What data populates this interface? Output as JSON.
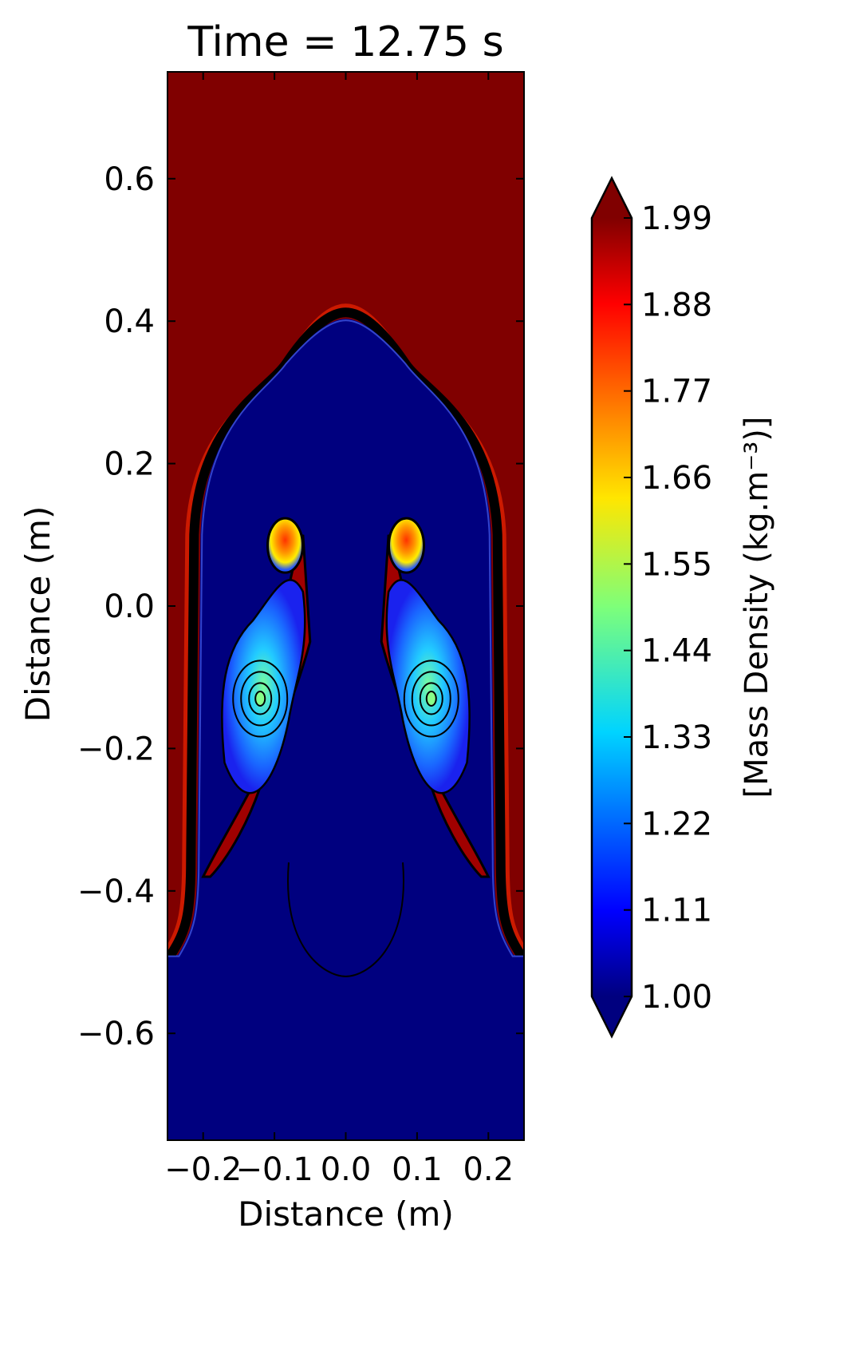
{
  "chart_data": {
    "type": "heatmap",
    "title": "Time = 12.75 s",
    "xlabel": "Distance (m)",
    "ylabel": "Distance (m)",
    "xlim": [
      -0.25,
      0.25
    ],
    "ylim": [
      -0.75,
      0.75
    ],
    "xticks": [
      -0.2,
      -0.1,
      0.0,
      0.1,
      0.2
    ],
    "xtick_labels": [
      "−0.2",
      "−0.1",
      "0.0",
      "0.1",
      "0.2"
    ],
    "yticks": [
      0.6,
      0.4,
      0.2,
      0.0,
      -0.2,
      -0.4,
      -0.6
    ],
    "ytick_labels": [
      "0.6",
      "0.4",
      "0.2",
      "0.0",
      "−0.2",
      "−0.4",
      "−0.6"
    ],
    "colorbar": {
      "label": "[Mass Density (kg.m⁻³)]",
      "min": 1.0,
      "max": 1.99,
      "extend": "both",
      "ticks": [
        1.99,
        1.88,
        1.77,
        1.66,
        1.55,
        1.44,
        1.33,
        1.22,
        1.11,
        1.0
      ],
      "tick_labels": [
        "1.99",
        "1.88",
        "1.77",
        "1.66",
        "1.55",
        "1.44",
        "1.33",
        "1.22",
        "1.11",
        "1.00"
      ],
      "colormap": "jet"
    },
    "fields": {
      "upper_fluid_density": 1.99,
      "lower_fluid_density": 1.0,
      "interface_far_field_y": -0.49,
      "bubble_tip_y": 0.41,
      "bubble_half_width": 0.215,
      "spike_bottom_y": -0.4,
      "vortex_cores": [
        {
          "x": -0.12,
          "y": -0.13,
          "density": 1.4
        },
        {
          "x": 0.12,
          "y": -0.13,
          "density": 1.4
        }
      ]
    }
  },
  "colors": {
    "heavy": "#800000",
    "light": "#00007f",
    "red": "#cc1a00",
    "contour": "#000000"
  }
}
